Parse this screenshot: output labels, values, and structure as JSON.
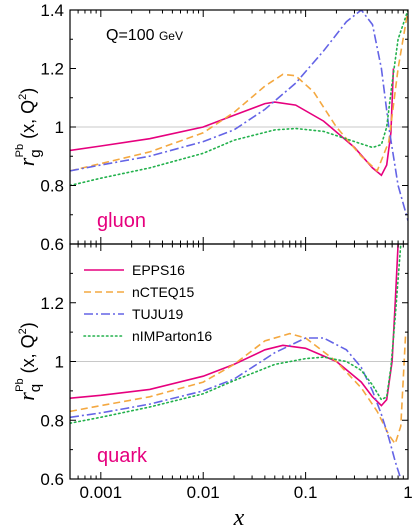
{
  "chart_data": [
    {
      "type": "line",
      "panel": "top",
      "ylabel": "r_g^Pb(x, Q^2)",
      "ylabel_parts": {
        "base": "r",
        "sub": "g",
        "sup": "Pb",
        "args": "(x, Q",
        "args_sup": "2",
        "args_end": ")"
      },
      "annotation": "Q=100",
      "annotation_unit": "GeV",
      "panel_label": "gluon",
      "panel_label_color": "#e6007e",
      "xscale": "log",
      "xlim": [
        0.0005,
        1.0
      ],
      "ylim": [
        0.6,
        1.4
      ],
      "yticks": [
        "0.6",
        "0.8",
        "1",
        "1.2",
        "1.4"
      ],
      "reference_line": 1.0,
      "series": [
        {
          "name": "EPPS16",
          "color": "#e6007e",
          "dash": "solid",
          "x": [
            0.0005,
            0.001,
            0.003,
            0.01,
            0.02,
            0.04,
            0.05,
            0.08,
            0.15,
            0.3,
            0.45,
            0.55,
            0.62,
            0.68,
            0.72
          ],
          "y": [
            0.92,
            0.935,
            0.96,
            1.0,
            1.04,
            1.08,
            1.085,
            1.075,
            1.02,
            0.93,
            0.86,
            0.835,
            0.87,
            0.98,
            1.2
          ]
        },
        {
          "name": "nCTEQ15",
          "color": "#f4a840",
          "dash": "dashed",
          "x": [
            0.0005,
            0.001,
            0.003,
            0.01,
            0.02,
            0.04,
            0.06,
            0.08,
            0.12,
            0.2,
            0.35,
            0.5,
            0.65,
            0.8,
            1.0
          ],
          "y": [
            0.85,
            0.875,
            0.915,
            0.98,
            1.05,
            1.14,
            1.18,
            1.175,
            1.12,
            1.0,
            0.9,
            0.85,
            0.95,
            1.2,
            1.4
          ]
        },
        {
          "name": "TUJU19",
          "color": "#6464e6",
          "dash": "dashdot",
          "x": [
            0.0005,
            0.001,
            0.003,
            0.01,
            0.02,
            0.04,
            0.08,
            0.15,
            0.25,
            0.35,
            0.45,
            0.55,
            0.65,
            0.8,
            1.0
          ],
          "y": [
            0.85,
            0.87,
            0.9,
            0.95,
            0.99,
            1.06,
            1.15,
            1.26,
            1.36,
            1.4,
            1.35,
            1.2,
            1.0,
            0.8,
            0.68
          ]
        },
        {
          "name": "nIMParton16",
          "color": "#22b14c",
          "dash": "dotted",
          "x": [
            0.0005,
            0.001,
            0.003,
            0.01,
            0.02,
            0.05,
            0.08,
            0.15,
            0.3,
            0.45,
            0.55,
            0.62,
            0.7,
            0.8,
            1.0
          ],
          "y": [
            0.8,
            0.825,
            0.86,
            0.91,
            0.955,
            0.99,
            0.995,
            0.985,
            0.95,
            0.93,
            0.94,
            1.0,
            1.15,
            1.3,
            1.4
          ]
        }
      ]
    },
    {
      "type": "line",
      "panel": "bottom",
      "ylabel": "r_q^Pb(x, Q^2)",
      "ylabel_parts": {
        "base": "r",
        "sub": "q",
        "sup": "Pb",
        "args": "(x, Q",
        "args_sup": "2",
        "args_end": ")"
      },
      "panel_label": "quark",
      "panel_label_color": "#e6007e",
      "xlabel": "x",
      "xscale": "log",
      "xlim": [
        0.0005,
        1.0
      ],
      "ylim": [
        0.6,
        1.4
      ],
      "yticks": [
        "0.6",
        "0.8",
        "1",
        "1.2"
      ],
      "xticks": [
        0.001,
        0.01,
        0.1,
        1
      ],
      "xtick_labels": [
        "0.001",
        "0.01",
        "0.1",
        "1"
      ],
      "reference_line": 1.0,
      "legend_position": "top-left",
      "series": [
        {
          "name": "EPPS16",
          "color": "#e6007e",
          "dash": "solid",
          "x": [
            0.0005,
            0.001,
            0.003,
            0.01,
            0.02,
            0.04,
            0.06,
            0.1,
            0.2,
            0.35,
            0.45,
            0.55,
            0.62,
            0.7,
            0.75,
            0.8
          ],
          "y": [
            0.875,
            0.885,
            0.905,
            0.95,
            0.99,
            1.04,
            1.055,
            1.045,
            1.0,
            0.93,
            0.88,
            0.85,
            0.87,
            1.0,
            1.2,
            1.4
          ]
        },
        {
          "name": "nCTEQ15",
          "color": "#f4a840",
          "dash": "dashed",
          "x": [
            0.0005,
            0.001,
            0.003,
            0.01,
            0.02,
            0.04,
            0.07,
            0.1,
            0.2,
            0.35,
            0.5,
            0.65,
            0.75,
            0.85,
            0.95
          ],
          "y": [
            0.83,
            0.85,
            0.88,
            0.93,
            0.99,
            1.07,
            1.095,
            1.08,
            1.0,
            0.91,
            0.83,
            0.75,
            0.72,
            0.78,
            1.1
          ]
        },
        {
          "name": "TUJU19",
          "color": "#6464e6",
          "dash": "dashdot",
          "x": [
            0.0005,
            0.001,
            0.003,
            0.01,
            0.02,
            0.05,
            0.1,
            0.15,
            0.25,
            0.35,
            0.45,
            0.55,
            0.65,
            0.75,
            0.85
          ],
          "y": [
            0.81,
            0.825,
            0.855,
            0.9,
            0.94,
            1.03,
            1.08,
            1.08,
            1.04,
            0.98,
            0.9,
            0.82,
            0.74,
            0.66,
            0.6
          ]
        },
        {
          "name": "nIMParton16",
          "color": "#22b14c",
          "dash": "dotted",
          "x": [
            0.0005,
            0.001,
            0.003,
            0.01,
            0.02,
            0.05,
            0.1,
            0.15,
            0.25,
            0.35,
            0.45,
            0.55,
            0.62,
            0.68,
            0.75,
            0.85
          ],
          "y": [
            0.79,
            0.81,
            0.845,
            0.89,
            0.935,
            0.99,
            1.01,
            1.015,
            1.0,
            0.97,
            0.92,
            0.87,
            0.88,
            0.98,
            1.15,
            1.4
          ]
        }
      ]
    }
  ]
}
